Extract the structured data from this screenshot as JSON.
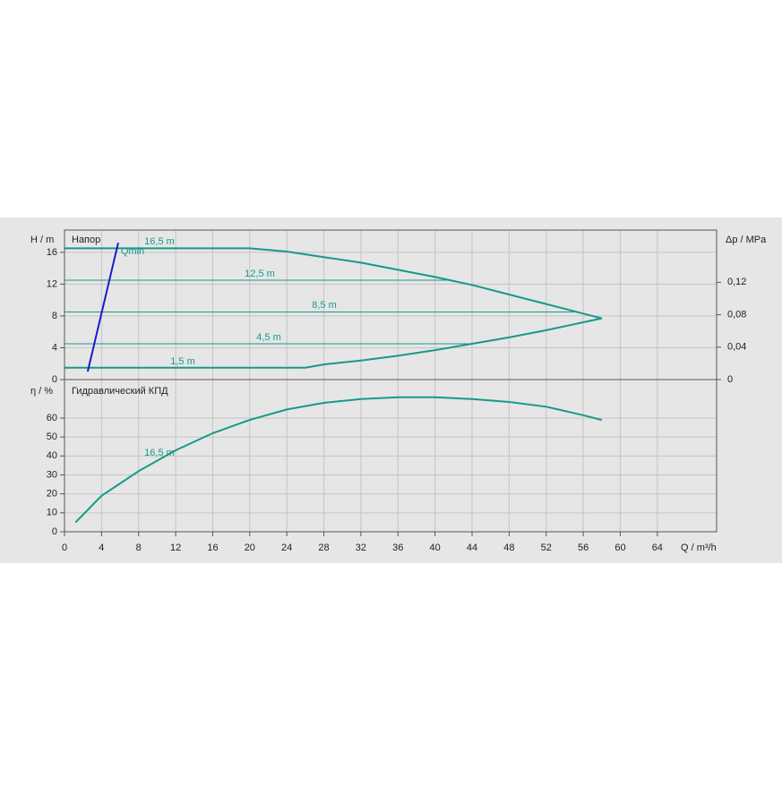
{
  "chart_data": [
    {
      "type": "line",
      "title": "Напор",
      "y_label": "H / m",
      "y2_label": "Δp / MPa",
      "xlim": [
        0,
        70.4
      ],
      "ylim": [
        0,
        18.8
      ],
      "yticks": [
        0,
        4,
        8,
        12,
        16
      ],
      "y2lim": [
        0,
        0.1844
      ],
      "y2ticks": [
        0,
        {
          "value": 0.04,
          "label": "0,04"
        },
        {
          "value": 0.08,
          "label": "0,08"
        },
        {
          "value": 0.12,
          "label": "0,12"
        }
      ],
      "grid": true,
      "series": [
        {
          "name": "16,5 m",
          "color": "#17998a",
          "x": [
            0,
            20,
            24,
            28,
            32,
            36,
            40,
            44,
            48,
            52,
            56,
            58
          ],
          "values": [
            16.5,
            16.5,
            16.1,
            15.4,
            14.7,
            13.8,
            12.9,
            11.9,
            10.7,
            9.5,
            8.3,
            7.7
          ]
        },
        {
          "name": "12,5 m",
          "color": "#17998a",
          "x": [
            0,
            41.5
          ],
          "values": [
            12.5,
            12.5
          ]
        },
        {
          "name": "8,5 m",
          "color": "#17998a",
          "x": [
            0,
            55
          ],
          "values": [
            8.5,
            8.5
          ]
        },
        {
          "name": "4,5 m",
          "color": "#17998a",
          "x": [
            0,
            44
          ],
          "values": [
            4.5,
            4.5
          ]
        },
        {
          "name": "1,5 m",
          "color": "#17998a",
          "x": [
            0,
            26,
            28,
            32,
            36,
            40,
            44,
            48,
            52,
            56,
            58
          ],
          "values": [
            1.5,
            1.5,
            1.9,
            2.4,
            3.0,
            3.7,
            4.5,
            5.3,
            6.2,
            7.2,
            7.7
          ]
        },
        {
          "name": "Qmin",
          "color": "#1a1acc",
          "x": [
            2.5,
            5.8
          ],
          "values": [
            1,
            17.2
          ]
        }
      ]
    },
    {
      "type": "line",
      "title": "Гидравлический КПД",
      "y_label": "η / %",
      "x_label": "Q / m³/h",
      "xlim": [
        0,
        70.4
      ],
      "xticks": [
        0,
        4,
        8,
        12,
        16,
        20,
        24,
        28,
        32,
        36,
        40,
        44,
        48,
        52,
        56,
        60,
        64
      ],
      "ylim": [
        0,
        80.3
      ],
      "yticks": [
        0,
        10,
        20,
        30,
        40,
        50,
        60
      ],
      "grid": true,
      "series": [
        {
          "name": "16,5 m",
          "color": "#17998a",
          "x": [
            1.2,
            4,
            8,
            12,
            16,
            20,
            24,
            28,
            32,
            36,
            40,
            44,
            48,
            52,
            56,
            58
          ],
          "values": [
            5,
            19,
            32,
            43,
            52,
            59,
            64.5,
            68,
            70,
            71,
            71,
            70,
            68.5,
            66,
            61.5,
            59
          ]
        }
      ]
    }
  ]
}
